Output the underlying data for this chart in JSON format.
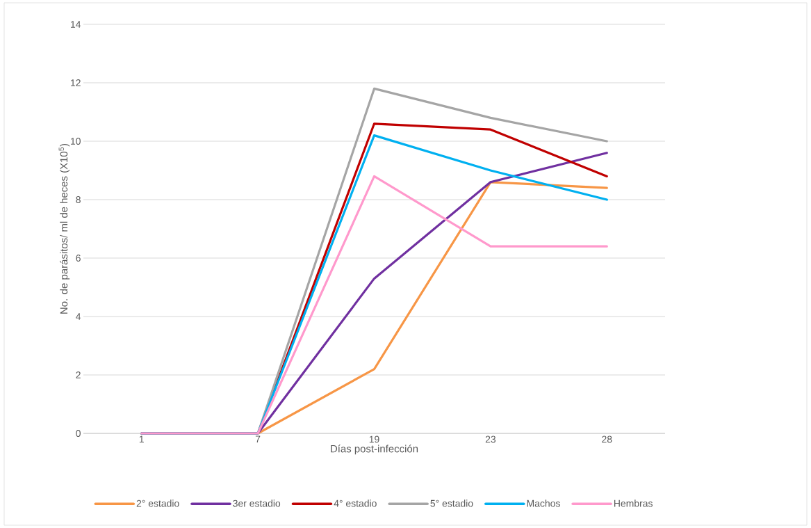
{
  "chart_data": {
    "type": "line",
    "xlabel": "Días post-infección",
    "ylabel": "No. de parásitos/ ml de heces (X10$^{5}$)",
    "categories": [
      "1",
      "7",
      "19",
      "23",
      "28"
    ],
    "series": [
      {
        "name": "2° estadio",
        "color": "#f79646",
        "values": [
          0,
          0,
          2.2,
          8.6,
          8.4
        ]
      },
      {
        "name": "3er estadio",
        "color": "#7030a0",
        "values": [
          0,
          0,
          5.3,
          8.6,
          9.6
        ]
      },
      {
        "name": "4° estadio",
        "color": "#c00000",
        "values": [
          0,
          0,
          10.6,
          10.4,
          8.8
        ]
      },
      {
        "name": "5° estadio",
        "color": "#a5a5a5",
        "values": [
          0,
          0,
          11.8,
          10.8,
          10.0
        ]
      },
      {
        "name": "Machos",
        "color": "#00b0f0",
        "values": [
          0,
          0,
          10.2,
          9.0,
          8.0
        ]
      },
      {
        "name": "Hembras",
        "color": "#ff99cc",
        "values": [
          0,
          0,
          8.8,
          6.4,
          6.4
        ]
      }
    ],
    "ylim": [
      0,
      14
    ],
    "yticks": [
      0,
      2,
      4,
      6,
      8,
      10,
      12,
      14
    ],
    "grid": "y",
    "legend": "bottom",
    "marker": "none",
    "line_style": "solid"
  }
}
